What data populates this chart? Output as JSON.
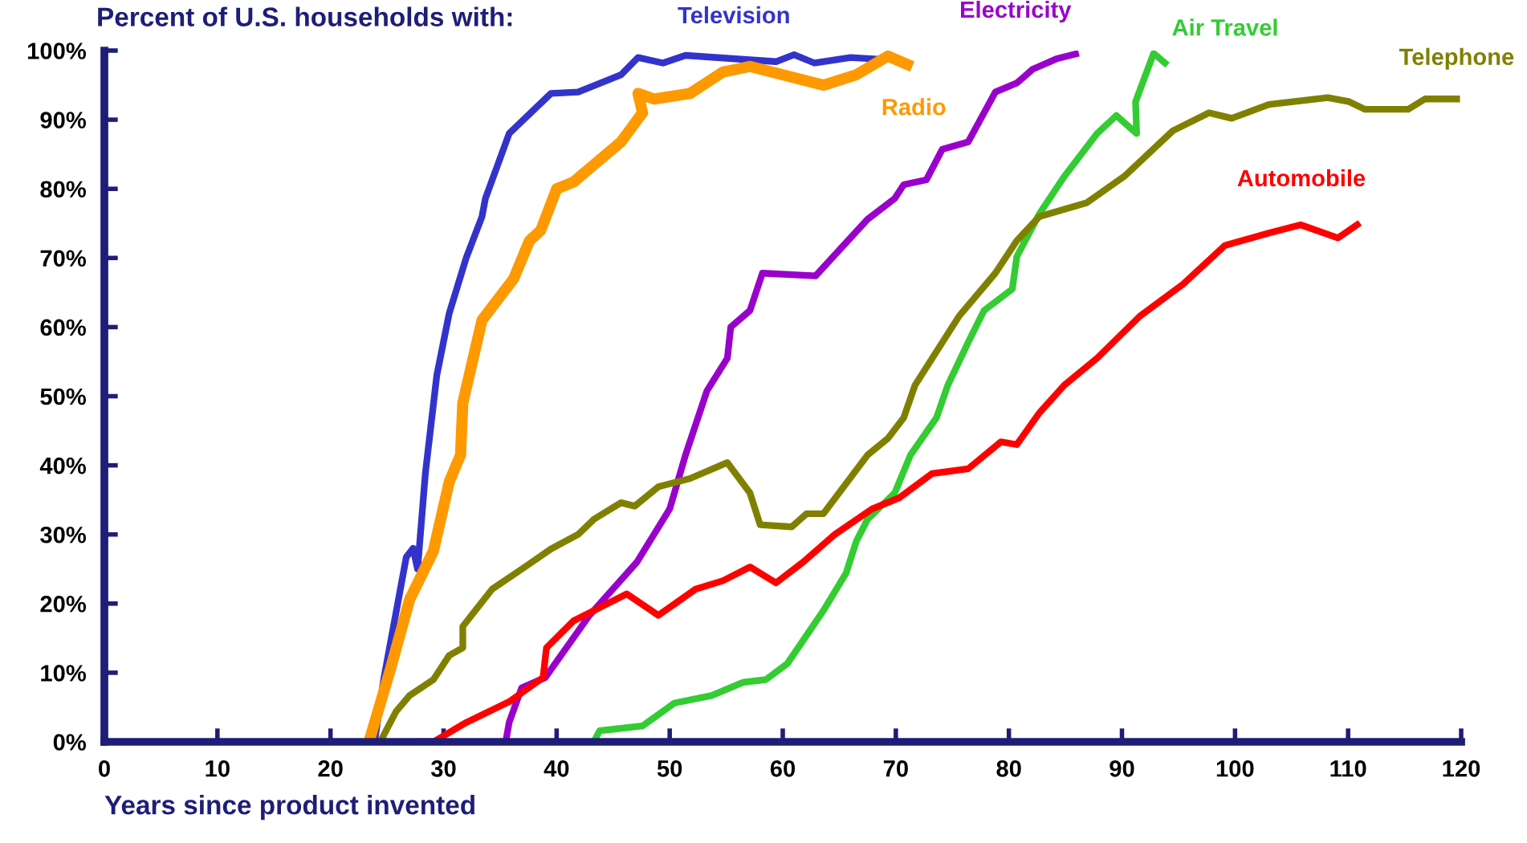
{
  "chart_data": {
    "type": "line",
    "title": "Percent of U.S. households with:",
    "xlabel": "Years since product invented",
    "xlim": [
      0,
      120
    ],
    "xticks": [
      0,
      10,
      20,
      30,
      40,
      50,
      60,
      70,
      80,
      90,
      100,
      110,
      120
    ],
    "ylim": [
      0,
      100
    ],
    "yticks": [
      {
        "value": 0,
        "label": "0%"
      },
      {
        "value": 10,
        "label": "10%"
      },
      {
        "value": 20,
        "label": "20%"
      },
      {
        "value": 30,
        "label": "30%"
      },
      {
        "value": 40,
        "label": "40%"
      },
      {
        "value": 50,
        "label": "50%"
      },
      {
        "value": 60,
        "label": "60%"
      },
      {
        "value": 70,
        "label": "70%"
      },
      {
        "value": 80,
        "label": "80%"
      },
      {
        "value": 90,
        "label": "90%"
      },
      {
        "value": 100,
        "label": "100%"
      }
    ],
    "grid": false,
    "legend": false,
    "marker": "none",
    "line_style": "solid",
    "series": [
      {
        "name": "Television",
        "color": "#3333cc",
        "x": [
          23.9,
          24.7,
          26.7,
          27.3,
          27.7,
          28.4,
          29.4,
          30.5,
          32,
          33.4,
          33.7,
          35.8,
          39.5,
          41.9,
          45.7,
          47.2,
          49.4,
          51.4,
          59.4,
          61,
          62.8,
          66,
          68.9
        ],
        "values": [
          0,
          9,
          26.7,
          28,
          25,
          39,
          53,
          62,
          70,
          76,
          78.6,
          88,
          93.8,
          94,
          96.5,
          99,
          98.2,
          99.3,
          98.4,
          99.4,
          98.2,
          99,
          98.7
        ]
      },
      {
        "name": "Radio",
        "color": "#ff9900",
        "x": [
          23.4,
          25.3,
          27,
          29.1,
          30.5,
          31.5,
          31.7,
          33.4,
          36.2,
          37.6,
          38.6,
          40,
          41.5,
          45.7,
          47.6,
          47.2,
          48.6,
          51.8,
          54.7,
          57.1,
          63.6,
          66.5,
          69.3,
          71
        ],
        "values": [
          0,
          10.5,
          20.6,
          27.6,
          37.6,
          41.5,
          49,
          61,
          67,
          72.5,
          74,
          80,
          81,
          86.8,
          91,
          93.8,
          93,
          93.8,
          96.9,
          97.7,
          95,
          96.5,
          99.2,
          98
        ]
      },
      {
        "name": "Electricity",
        "color": "#9900cc",
        "x": [
          35.5,
          35.8,
          36.9,
          39,
          42.9,
          47.1,
          50,
          51.4,
          53.3,
          55.1,
          55.4,
          57.1,
          58.2,
          62.9,
          67.5,
          69.9,
          70.7,
          72.7,
          74.1,
          76.4,
          78.8,
          80.7,
          82.1,
          84.2,
          85.9
        ],
        "values": [
          0,
          2.8,
          7.8,
          9.3,
          18.3,
          26,
          33.7,
          41.5,
          50.8,
          55.5,
          60,
          62.4,
          67.8,
          67.4,
          75.6,
          78.6,
          80.6,
          81.3,
          85.7,
          86.8,
          94,
          95.3,
          97.3,
          98.8,
          99.5
        ]
      },
      {
        "name": "Air Travel",
        "color": "#33cc33",
        "x": [
          43.3,
          43.8,
          47.6,
          50.4,
          53.7,
          56.5,
          58.5,
          60.4,
          63.6,
          65.6,
          66.5,
          67.5,
          69.9,
          71.3,
          73.6,
          74.6,
          76.4,
          77.8,
          80.3,
          80.7,
          82.7,
          84.9,
          87.8,
          89.5,
          91.3,
          91.2,
          92.8,
          93.8
        ],
        "values": [
          0,
          1.6,
          2.3,
          5.6,
          6.7,
          8.6,
          9,
          11.3,
          19,
          24.4,
          29,
          32.2,
          36,
          41.5,
          46.9,
          51.6,
          57.8,
          62.4,
          65.5,
          70.2,
          76.4,
          81.8,
          88,
          90.6,
          88,
          92.6,
          99.6,
          98.2
        ]
      },
      {
        "name": "Telephone",
        "color": "#808000",
        "x": [
          24.4,
          25.8,
          27,
          29.1,
          30.5,
          31.7,
          31.7,
          34.3,
          37.2,
          39.5,
          41.9,
          43.3,
          45.7,
          46.9,
          49,
          51.8,
          55.1,
          57.1,
          58,
          60.8,
          62.1,
          63.6,
          67.5,
          69.3,
          70.7,
          71.7,
          75.6,
          78.8,
          80.7,
          82.7,
          86.9,
          90.2,
          94.5,
          97.7,
          99.7,
          103,
          108.2,
          110.1,
          111.5,
          115.3,
          116.8,
          119.6
        ],
        "values": [
          0,
          4.4,
          6.7,
          9,
          12.5,
          13.6,
          16.7,
          22.1,
          25.3,
          27.9,
          30,
          32.2,
          34.6,
          34.1,
          36.9,
          38.1,
          40.4,
          36,
          31.4,
          31.1,
          33,
          33,
          41.5,
          43.9,
          46.9,
          51.6,
          61.6,
          67.8,
          72.5,
          76,
          78,
          81.8,
          88.4,
          91,
          90.2,
          92.2,
          93.2,
          92.6,
          91.5,
          91.5,
          93,
          93
        ]
      },
      {
        "name": "Automobile",
        "color": "#ff0000",
        "x": [
          27.7,
          29.1,
          32,
          35.8,
          38.8,
          39.1,
          41.5,
          46.2,
          49,
          52.3,
          54.7,
          57.1,
          59.4,
          61.8,
          64.6,
          67.9,
          70.3,
          73.2,
          76.4,
          79.3,
          80.7,
          82.7,
          84.9,
          87.8,
          91.6,
          95.4,
          99.1,
          103,
          105.8,
          109.1,
          110.8
        ],
        "values": [
          0,
          0,
          2.8,
          5.8,
          9.3,
          13.6,
          17.5,
          21.4,
          18.3,
          22.1,
          23.3,
          25.3,
          23,
          26,
          30,
          33.7,
          35.3,
          38.8,
          39.5,
          43.4,
          43,
          47.6,
          51.6,
          55.5,
          61.6,
          66.2,
          71.8,
          73.6,
          74.8,
          72.9,
          74.8
        ]
      }
    ]
  }
}
